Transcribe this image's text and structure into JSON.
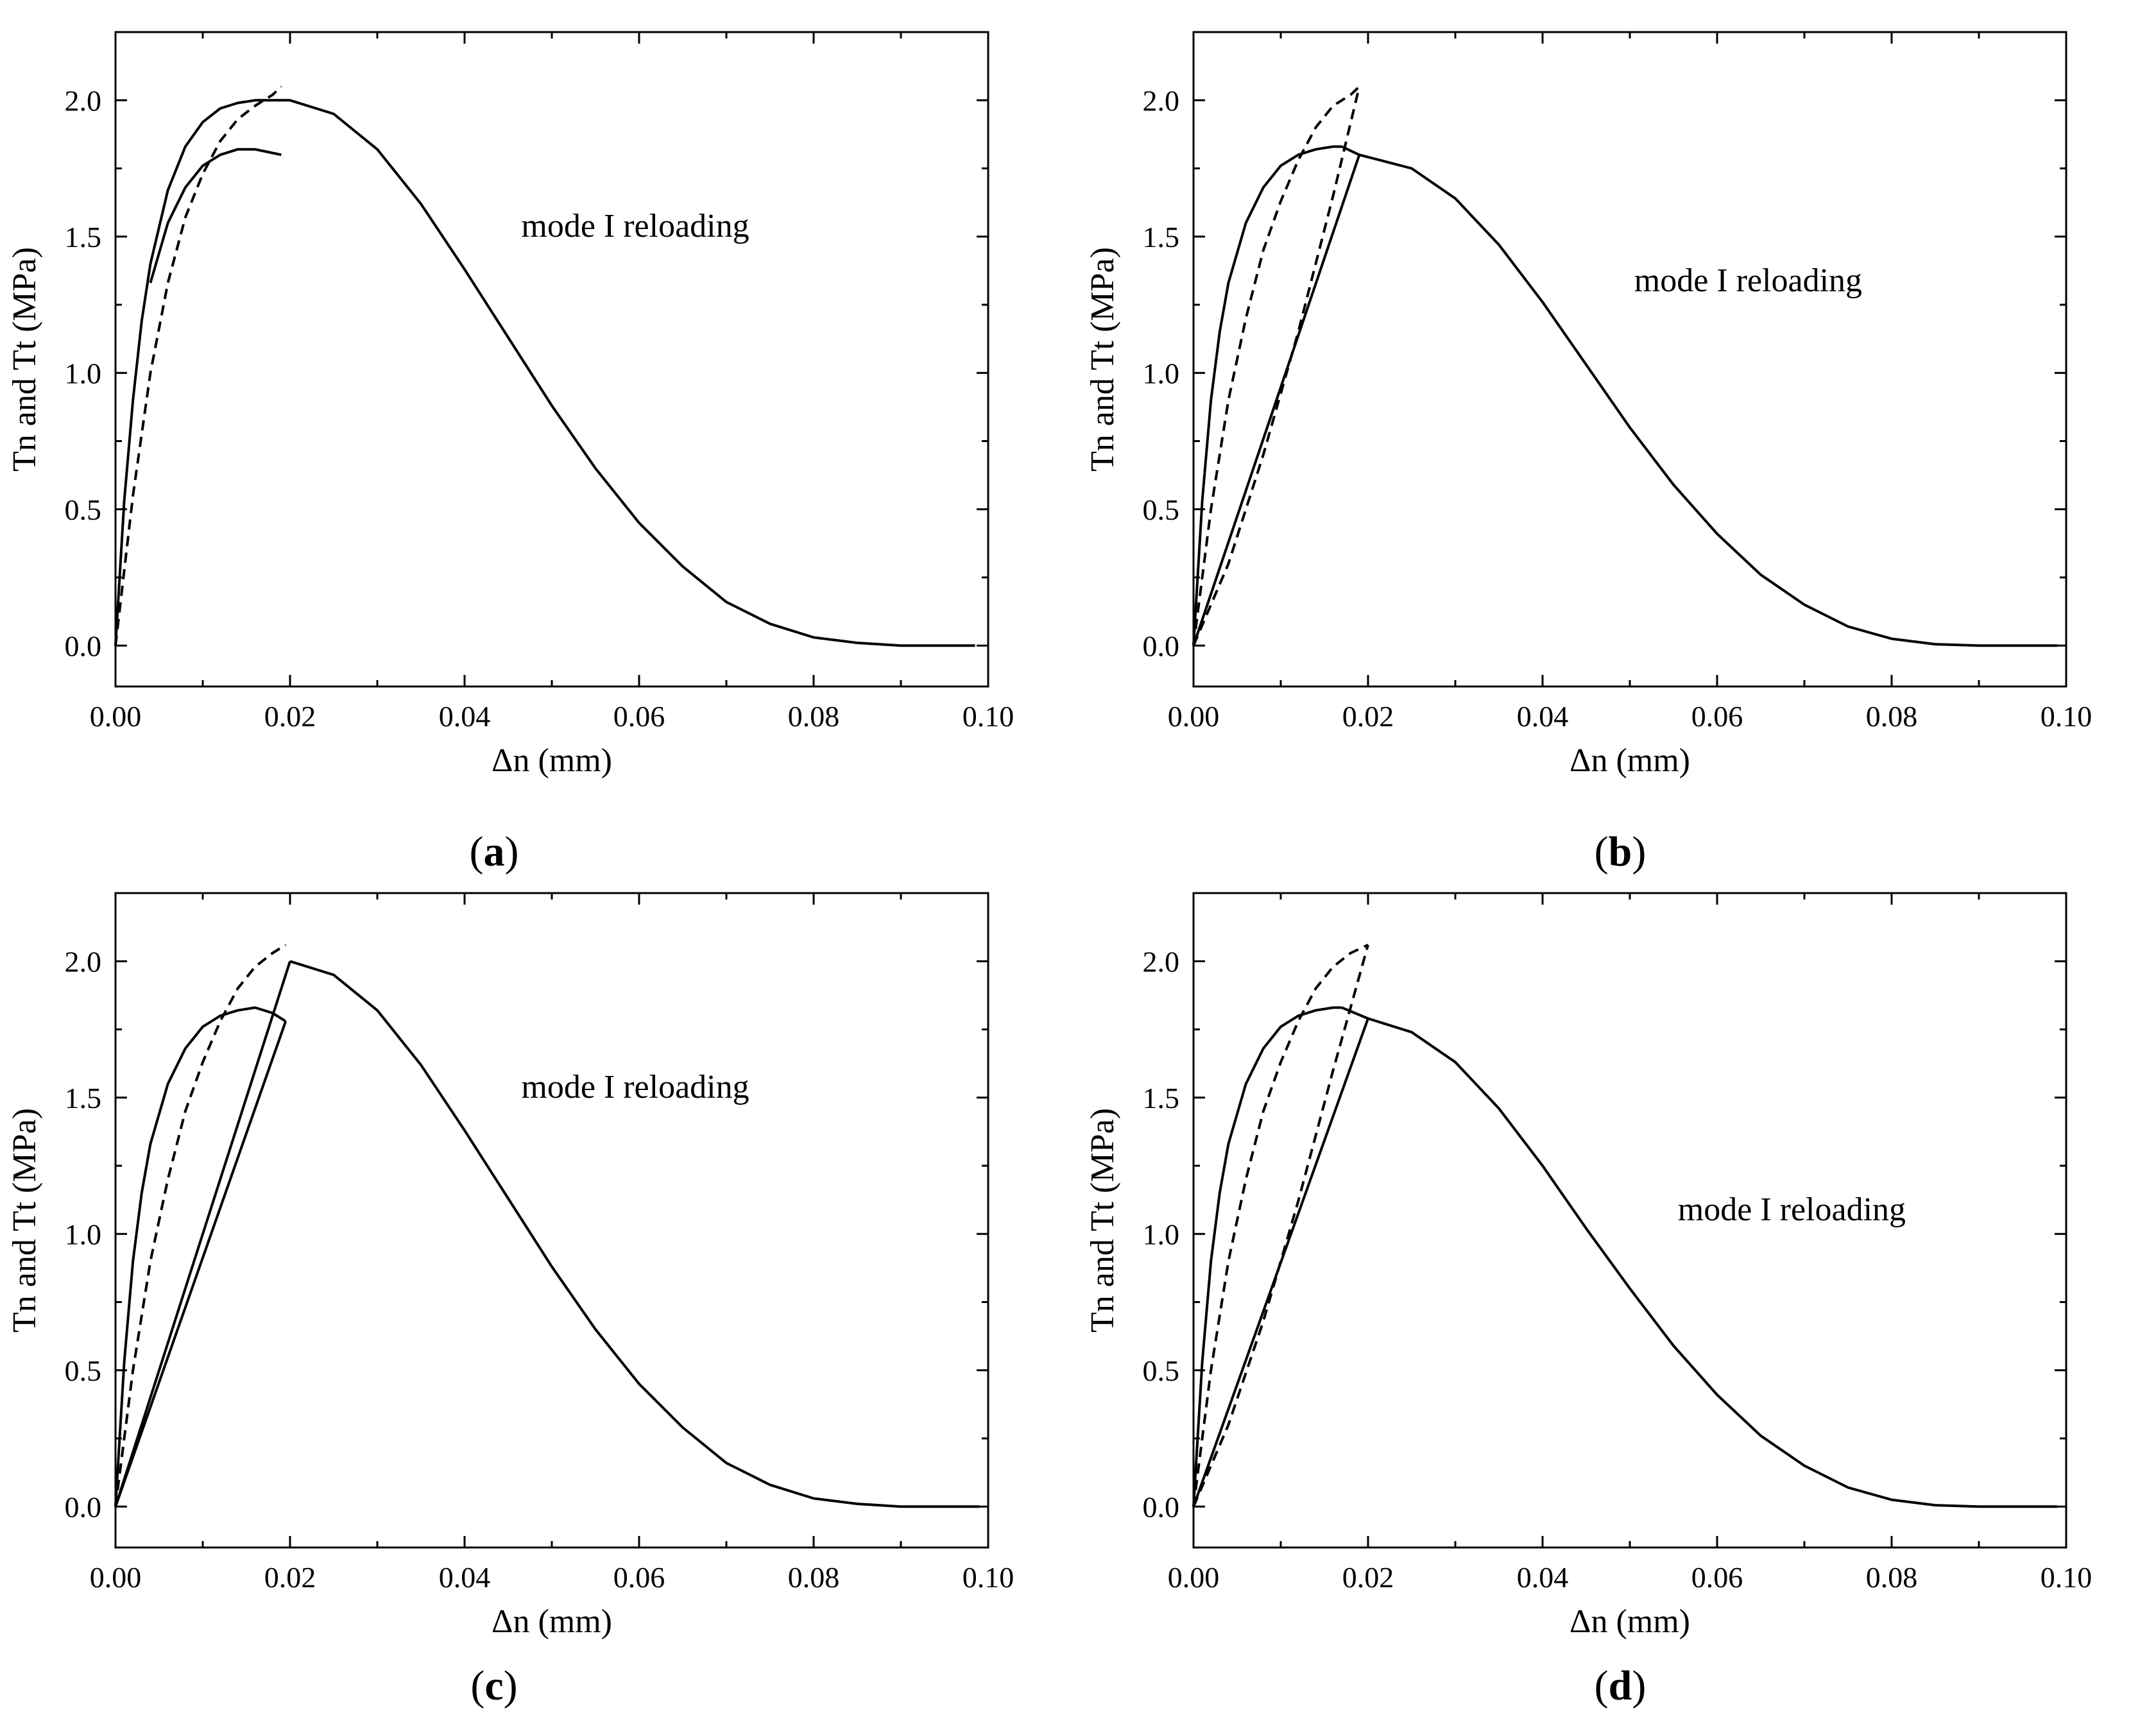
{
  "figure": {
    "panels": [
      {
        "id": "a",
        "caption_letter": "a"
      },
      {
        "id": "b",
        "caption_letter": "b"
      },
      {
        "id": "c",
        "caption_letter": "c"
      },
      {
        "id": "d",
        "caption_letter": "d"
      }
    ]
  },
  "chart_data": [
    {
      "panel": "a",
      "type": "line",
      "xlabel": "Δn (mm)",
      "ylabel": "Tn and Tt (MPa)",
      "xlim": [
        0,
        0.1
      ],
      "ylim": [
        -0.15,
        2.25
      ],
      "xticks": [
        "0.00",
        "0.02",
        "0.04",
        "0.06",
        "0.08",
        "0.10"
      ],
      "xtick_values": [
        0,
        0.02,
        0.04,
        0.06,
        0.08,
        0.1
      ],
      "yticks": [
        "0.0",
        "0.5",
        "1.0",
        "1.5",
        "2.0"
      ],
      "ytick_values": [
        0,
        0.5,
        1.0,
        1.5,
        2.0
      ],
      "annotation": {
        "text": "mode I reloading",
        "x": 0.0465,
        "y": 1.5
      },
      "series": [
        {
          "name": "main-curve",
          "style": "solid",
          "x": [
            0,
            0.001,
            0.002,
            0.003,
            0.004,
            0.006,
            0.008,
            0.01,
            0.012,
            0.014,
            0.016,
            0.018,
            0.02,
            0.025,
            0.03,
            0.035,
            0.04,
            0.045,
            0.05,
            0.055,
            0.06,
            0.065,
            0.07,
            0.075,
            0.08,
            0.085,
            0.09,
            0.095,
            0.0985
          ],
          "y": [
            0,
            0.53,
            0.9,
            1.19,
            1.4,
            1.67,
            1.83,
            1.92,
            1.97,
            1.99,
            2.0,
            2.0,
            2.0,
            1.95,
            1.82,
            1.62,
            1.38,
            1.13,
            0.88,
            0.65,
            0.45,
            0.29,
            0.16,
            0.08,
            0.03,
            0.01,
            0.0,
            0.0,
            0.0
          ]
        },
        {
          "name": "unloading-curve",
          "style": "solid",
          "x": [
            0.004,
            0.006,
            0.008,
            0.01,
            0.012,
            0.014,
            0.016,
            0.0175,
            0.019
          ],
          "y": [
            1.33,
            1.55,
            1.68,
            1.76,
            1.8,
            1.82,
            1.82,
            1.81,
            1.8
          ]
        },
        {
          "name": "reloading-dashed",
          "style": "dashed",
          "x": [
            0,
            0.002,
            0.004,
            0.006,
            0.008,
            0.01,
            0.012,
            0.014,
            0.016,
            0.018,
            0.019
          ],
          "y": [
            0,
            0.55,
            1.0,
            1.33,
            1.57,
            1.73,
            1.85,
            1.93,
            1.98,
            2.02,
            2.05
          ]
        }
      ]
    },
    {
      "panel": "b",
      "type": "line",
      "xlabel": "Δn (mm)",
      "ylabel": "Tn and Tt (MPa)",
      "xlim": [
        0,
        0.1
      ],
      "ylim": [
        -0.15,
        2.25
      ],
      "xticks": [
        "0.00",
        "0.02",
        "0.04",
        "0.06",
        "0.08",
        "0.10"
      ],
      "xtick_values": [
        0,
        0.02,
        0.04,
        0.06,
        0.08,
        0.1
      ],
      "yticks": [
        "0.0",
        "0.5",
        "1.0",
        "1.5",
        "2.0"
      ],
      "ytick_values": [
        0,
        0.5,
        1.0,
        1.5,
        2.0
      ],
      "annotation": {
        "text": "mode I reloading",
        "x": 0.0505,
        "y": 1.3
      },
      "series": [
        {
          "name": "loading-curve",
          "style": "solid",
          "x": [
            0,
            0.001,
            0.002,
            0.003,
            0.004,
            0.006,
            0.008,
            0.01,
            0.012,
            0.014,
            0.016,
            0.017
          ],
          "y": [
            0,
            0.53,
            0.9,
            1.15,
            1.33,
            1.55,
            1.68,
            1.76,
            1.8,
            1.82,
            1.83,
            1.83
          ]
        },
        {
          "name": "plateau-connector",
          "style": "solid",
          "x": [
            0.017,
            0.018,
            0.019
          ],
          "y": [
            1.83,
            1.815,
            1.8
          ]
        },
        {
          "name": "linear-reload",
          "style": "solid",
          "x": [
            0,
            0.019
          ],
          "y": [
            0,
            1.8
          ]
        },
        {
          "name": "softening-curve",
          "style": "solid",
          "x": [
            0.019,
            0.025,
            0.03,
            0.035,
            0.04,
            0.045,
            0.05,
            0.055,
            0.06,
            0.065,
            0.07,
            0.075,
            0.08,
            0.085,
            0.09,
            0.095,
            0.099
          ],
          "y": [
            1.8,
            1.75,
            1.64,
            1.47,
            1.26,
            1.03,
            0.8,
            0.59,
            0.41,
            0.26,
            0.15,
            0.07,
            0.025,
            0.005,
            0.0,
            0.0,
            0.0
          ]
        },
        {
          "name": "dashed-upper",
          "style": "dashed",
          "x": [
            0,
            0.002,
            0.004,
            0.006,
            0.008,
            0.01,
            0.012,
            0.014,
            0.016,
            0.018,
            0.019
          ],
          "y": [
            0,
            0.5,
            0.9,
            1.2,
            1.45,
            1.63,
            1.78,
            1.9,
            1.98,
            2.02,
            2.05
          ]
        },
        {
          "name": "dashed-lower",
          "style": "dashed",
          "x": [
            0,
            0.004,
            0.008,
            0.012,
            0.016,
            0.019
          ],
          "y": [
            0,
            0.3,
            0.7,
            1.15,
            1.65,
            2.05
          ]
        }
      ]
    },
    {
      "panel": "c",
      "type": "line",
      "xlabel": "Δn (mm)",
      "ylabel": "Tn and Tt (MPa)",
      "xlim": [
        0,
        0.1
      ],
      "ylim": [
        -0.15,
        2.25
      ],
      "xticks": [
        "0.00",
        "0.02",
        "0.04",
        "0.06",
        "0.08",
        "0.10"
      ],
      "xtick_values": [
        0,
        0.02,
        0.04,
        0.06,
        0.08,
        0.1
      ],
      "yticks": [
        "0.0",
        "0.5",
        "1.0",
        "1.5",
        "2.0"
      ],
      "ytick_values": [
        0,
        0.5,
        1.0,
        1.5,
        2.0
      ],
      "annotation": {
        "text": "mode I reloading",
        "x": 0.0465,
        "y": 1.5
      },
      "series": [
        {
          "name": "loading-curve",
          "style": "solid",
          "x": [
            0,
            0.001,
            0.002,
            0.003,
            0.004,
            0.006,
            0.008,
            0.01,
            0.012,
            0.014,
            0.016,
            0.018,
            0.0195
          ],
          "y": [
            0,
            0.53,
            0.9,
            1.15,
            1.33,
            1.55,
            1.68,
            1.76,
            1.8,
            1.82,
            1.83,
            1.81,
            1.78
          ]
        },
        {
          "name": "linear-reload-lower",
          "style": "solid",
          "x": [
            0,
            0.0195
          ],
          "y": [
            0,
            1.78
          ]
        },
        {
          "name": "linear-reload-upper",
          "style": "solid",
          "x": [
            0,
            0.02
          ],
          "y": [
            0,
            2.0
          ]
        },
        {
          "name": "softening-curve",
          "style": "solid",
          "x": [
            0.02,
            0.025,
            0.03,
            0.035,
            0.04,
            0.045,
            0.05,
            0.055,
            0.06,
            0.065,
            0.07,
            0.075,
            0.08,
            0.085,
            0.09,
            0.095,
            0.099
          ],
          "y": [
            2.0,
            1.95,
            1.82,
            1.62,
            1.38,
            1.13,
            0.88,
            0.65,
            0.45,
            0.29,
            0.16,
            0.08,
            0.03,
            0.01,
            0.0,
            0.0,
            0.0
          ]
        },
        {
          "name": "dashed-curve",
          "style": "dashed",
          "x": [
            0,
            0.002,
            0.004,
            0.006,
            0.008,
            0.01,
            0.012,
            0.014,
            0.016,
            0.018,
            0.0195
          ],
          "y": [
            0,
            0.5,
            0.9,
            1.2,
            1.45,
            1.63,
            1.78,
            1.9,
            1.98,
            2.03,
            2.06
          ]
        }
      ]
    },
    {
      "panel": "d",
      "type": "line",
      "xlabel": "Δn (mm)",
      "ylabel": "Tn and Tt (MPa)",
      "xlim": [
        0,
        0.1
      ],
      "ylim": [
        -0.15,
        2.25
      ],
      "xticks": [
        "0.00",
        "0.02",
        "0.04",
        "0.06",
        "0.08",
        "0.10"
      ],
      "xtick_values": [
        0,
        0.02,
        0.04,
        0.06,
        0.08,
        0.1
      ],
      "yticks": [
        "0.0",
        "0.5",
        "1.0",
        "1.5",
        "2.0"
      ],
      "ytick_values": [
        0,
        0.5,
        1.0,
        1.5,
        2.0
      ],
      "annotation": {
        "text": "mode I reloading",
        "x": 0.0555,
        "y": 1.05
      },
      "series": [
        {
          "name": "loading-curve",
          "style": "solid",
          "x": [
            0,
            0.001,
            0.002,
            0.003,
            0.004,
            0.006,
            0.008,
            0.01,
            0.012,
            0.014,
            0.016,
            0.017
          ],
          "y": [
            0,
            0.53,
            0.9,
            1.15,
            1.33,
            1.55,
            1.68,
            1.76,
            1.8,
            1.82,
            1.83,
            1.83
          ]
        },
        {
          "name": "plateau-connector",
          "style": "solid",
          "x": [
            0.017,
            0.0185,
            0.02
          ],
          "y": [
            1.83,
            1.81,
            1.79
          ]
        },
        {
          "name": "linear-reload",
          "style": "solid",
          "x": [
            0,
            0.02
          ],
          "y": [
            0,
            1.79
          ]
        },
        {
          "name": "softening-curve",
          "style": "solid",
          "x": [
            0.02,
            0.025,
            0.03,
            0.035,
            0.04,
            0.045,
            0.05,
            0.055,
            0.06,
            0.065,
            0.07,
            0.075,
            0.08,
            0.085,
            0.09,
            0.095,
            0.099
          ],
          "y": [
            1.79,
            1.74,
            1.63,
            1.46,
            1.25,
            1.02,
            0.8,
            0.59,
            0.41,
            0.26,
            0.15,
            0.07,
            0.025,
            0.005,
            0.0,
            0.0,
            0.0
          ]
        },
        {
          "name": "dashed-upper",
          "style": "dashed",
          "x": [
            0,
            0.002,
            0.004,
            0.006,
            0.008,
            0.01,
            0.012,
            0.014,
            0.016,
            0.018,
            0.02
          ],
          "y": [
            0,
            0.5,
            0.9,
            1.2,
            1.45,
            1.63,
            1.78,
            1.9,
            1.98,
            2.03,
            2.06
          ]
        },
        {
          "name": "dashed-lower",
          "style": "dashed",
          "x": [
            0,
            0.004,
            0.008,
            0.012,
            0.016,
            0.02
          ],
          "y": [
            0,
            0.3,
            0.68,
            1.12,
            1.6,
            2.06
          ]
        }
      ]
    }
  ]
}
